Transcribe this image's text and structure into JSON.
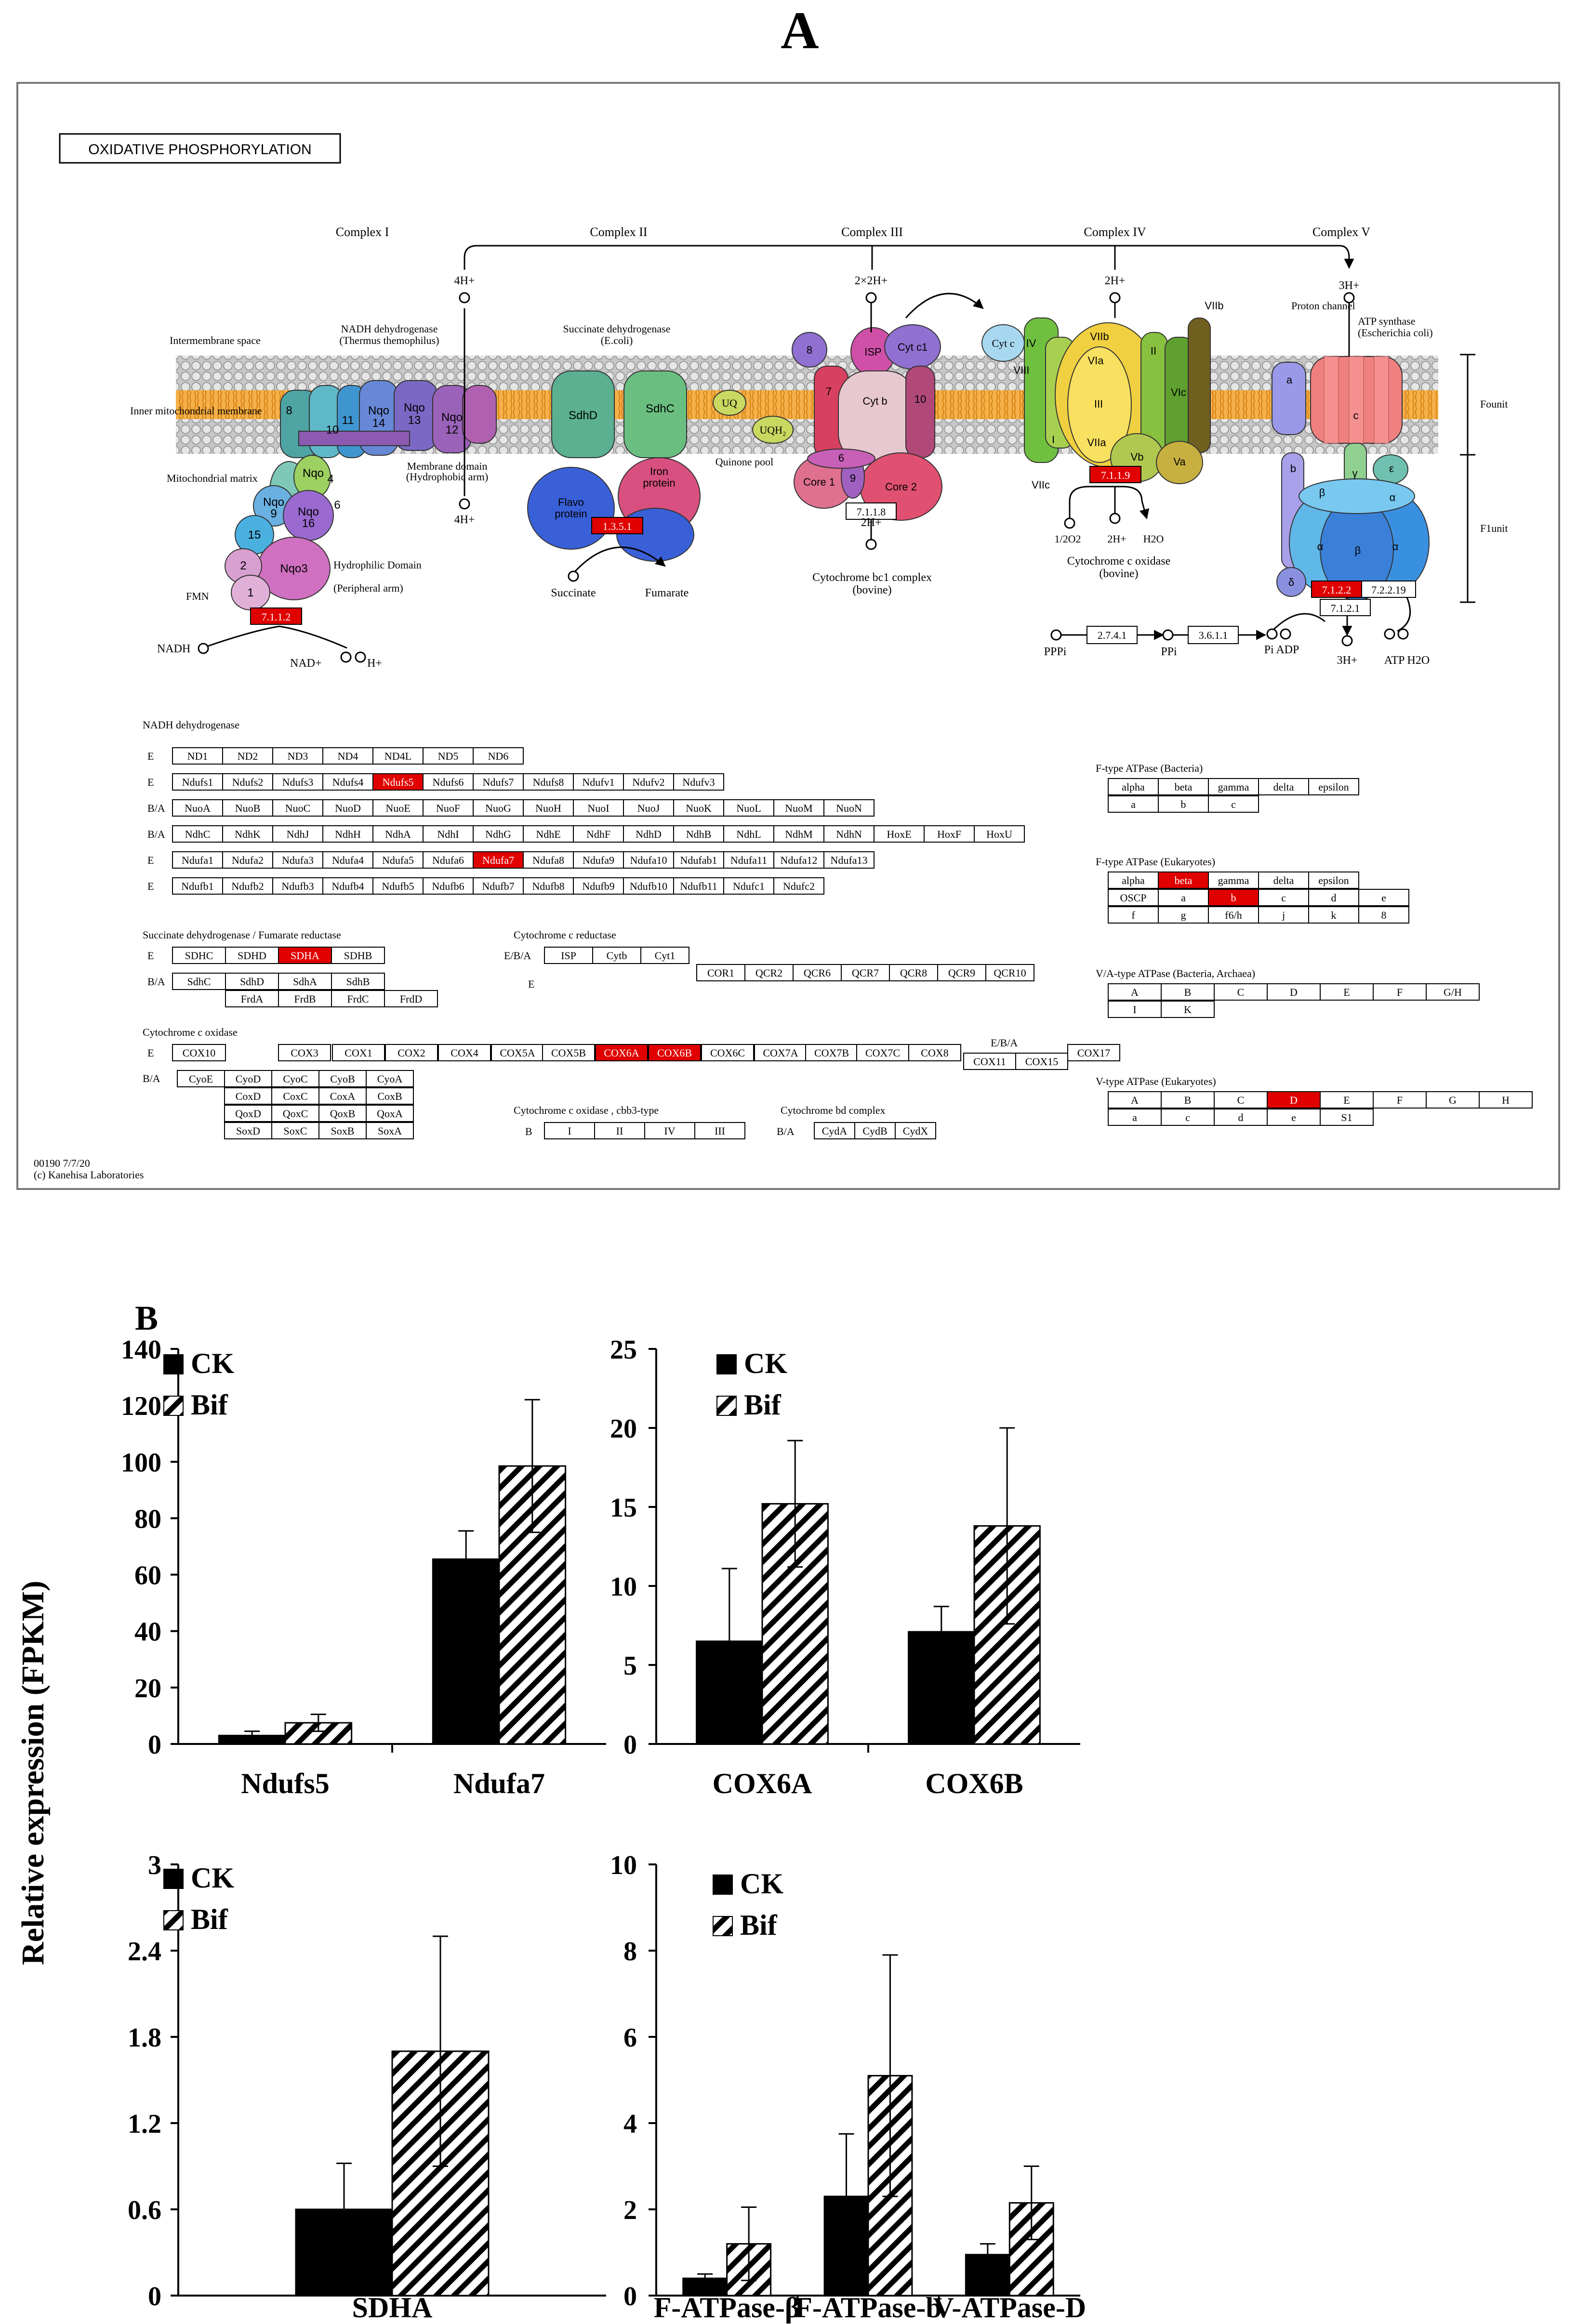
{
  "figure": {
    "panel_a_label": "A",
    "panel_b_label": "B",
    "y_axis_label": "Relative expression (FPKM)"
  },
  "kegg_map": {
    "title": "OXIDATIVE PHOSPHORYLATION",
    "map_id": "00190 7/7/20",
    "copyright": "(c) Kanehisa Laboratories",
    "complexes": [
      "Complex I",
      "Complex II",
      "Complex III",
      "Complex IV",
      "Complex V"
    ],
    "protons": [
      "4H+",
      "4H+",
      "2×2H+",
      "2H+",
      "3H+",
      "2H+",
      "2H+",
      "3H+"
    ],
    "labels": {
      "intermembrane": "Intermembrane space",
      "inner_membrane": "Inner mitochondrial membrane",
      "matrix": "Mitochondrial matrix",
      "nadh_dh": "NADH dehydrogenase",
      "nadh_dh_sub": "(Thermus themophilus)",
      "membrane_domain": "Membrane domain",
      "membrane_domain_sub": "(Hydrophobic arm)",
      "hydrophilic": "Hydrophilic Domain",
      "hydrophilic_sub": "(Peripheral arm)",
      "fmn": "FMN",
      "nadh": "NADH",
      "nad": "NAD+",
      "h_plus": "H+",
      "succ_dh": "Succinate dehydrogenase",
      "succ_dh_sub": "(E.coli)",
      "succinate": "Succinate",
      "fumarate": "Fumarate",
      "quinone_pool": "Quinone pool",
      "uq": "UQ",
      "uqh2": "UQH₂",
      "cytc": "Cyt c",
      "bc1": "Cytochrome bc1 complex",
      "bc1_sub": "(bovine)",
      "cox": "Cytochrome c oxidase",
      "cox_sub": "(bovine)",
      "half_o2": "1/2O2",
      "h2o": "H2O",
      "proton_channel": "Proton channel",
      "atp_synthase": "ATP synthase",
      "atp_synthase_sub": "(Escherichia coli)",
      "fo_unit": "Founit",
      "f1_unit": "F1unit",
      "pppi": "PPPi",
      "ppi": "PPi",
      "pi_adp": "Pi ADP",
      "atp_h2o": "ATP H2O",
      "three_h": "3H+"
    },
    "subunits": {
      "c1": [
        "Nqo",
        "8",
        "10",
        "11",
        "Nqo 14",
        "Nqo 13",
        "Nqo 12",
        "Nqo 9",
        "Nqo 16",
        "15",
        "Nqo3",
        "2",
        "1",
        "4",
        "6"
      ],
      "c2": [
        "SdhD",
        "SdhC",
        "Flavo protein",
        "Iron protein"
      ],
      "c3": [
        "8",
        "ISP",
        "Cyt c1",
        "7",
        "Cyt b",
        "10",
        "6",
        "Core 1",
        "9",
        "Core 2"
      ],
      "c4": [
        "IV",
        "VIII",
        "VIIb",
        "VIa",
        "II",
        "III",
        "VIc",
        "I",
        "VIIa",
        "Vb",
        "Va",
        "VIIc",
        "VIIb"
      ],
      "c5": [
        "a",
        "c",
        "b",
        "δ",
        "ε",
        "γ",
        "α",
        "β",
        "α"
      ]
    },
    "ec_numbers": [
      {
        "label": "7.1.1.2",
        "highlight": true
      },
      {
        "label": "1.3.5.1",
        "highlight": true
      },
      {
        "label": "7.1.1.8",
        "highlight": false
      },
      {
        "label": "7.1.1.9",
        "highlight": true
      },
      {
        "label": "7.1.2.2",
        "highlight": true
      },
      {
        "label": "7.2.2.19",
        "highlight": false
      },
      {
        "label": "7.1.2.1",
        "highlight": false
      },
      {
        "label": "2.7.4.1",
        "highlight": false
      },
      {
        "label": "3.6.1.1",
        "highlight": false
      }
    ],
    "nadh_table": {
      "title": "NADH dehydrogenase",
      "rows": [
        {
          "prefix": "E",
          "cells": [
            {
              "t": "ND1"
            },
            {
              "t": "ND2"
            },
            {
              "t": "ND3"
            },
            {
              "t": "ND4"
            },
            {
              "t": "ND4L"
            },
            {
              "t": "ND5"
            },
            {
              "t": "ND6"
            }
          ]
        },
        {
          "prefix": "E",
          "cells": [
            {
              "t": "Ndufs1"
            },
            {
              "t": "Ndufs2"
            },
            {
              "t": "Ndufs3"
            },
            {
              "t": "Ndufs4"
            },
            {
              "t": "Ndufs5",
              "h": true
            },
            {
              "t": "Ndufs6"
            },
            {
              "t": "Ndufs7"
            },
            {
              "t": "Ndufs8"
            },
            {
              "t": "Ndufv1"
            },
            {
              "t": "Ndufv2"
            },
            {
              "t": "Ndufv3"
            }
          ]
        },
        {
          "prefix": "B/A",
          "cells": [
            {
              "t": "NuoA"
            },
            {
              "t": "NuoB"
            },
            {
              "t": "NuoC"
            },
            {
              "t": "NuoD"
            },
            {
              "t": "NuoE"
            },
            {
              "t": "NuoF"
            },
            {
              "t": "NuoG"
            },
            {
              "t": "NuoH"
            },
            {
              "t": "NuoI"
            },
            {
              "t": "NuoJ"
            },
            {
              "t": "NuoK"
            },
            {
              "t": "NuoL"
            },
            {
              "t": "NuoM"
            },
            {
              "t": "NuoN"
            }
          ]
        },
        {
          "prefix": "B/A",
          "cells": [
            {
              "t": "NdhC"
            },
            {
              "t": "NdhK"
            },
            {
              "t": "NdhJ"
            },
            {
              "t": "NdhH"
            },
            {
              "t": "NdhA"
            },
            {
              "t": "NdhI"
            },
            {
              "t": "NdhG"
            },
            {
              "t": "NdhE"
            },
            {
              "t": "NdhF"
            },
            {
              "t": "NdhD"
            },
            {
              "t": "NdhB"
            },
            {
              "t": "NdhL"
            },
            {
              "t": "NdhM"
            },
            {
              "t": "NdhN"
            },
            {
              "t": "HoxE"
            },
            {
              "t": "HoxF"
            },
            {
              "t": "HoxU"
            }
          ]
        },
        {
          "prefix": "E",
          "cells": [
            {
              "t": "Ndufa1"
            },
            {
              "t": "Ndufa2"
            },
            {
              "t": "Ndufa3"
            },
            {
              "t": "Ndufa4"
            },
            {
              "t": "Ndufa5"
            },
            {
              "t": "Ndufa6"
            },
            {
              "t": "Ndufa7",
              "h": true
            },
            {
              "t": "Ndufa8"
            },
            {
              "t": "Ndufa9"
            },
            {
              "t": "Ndufa10"
            },
            {
              "t": "Ndufab1"
            },
            {
              "t": "Ndufa11"
            },
            {
              "t": "Ndufa12"
            },
            {
              "t": "Ndufa13"
            }
          ]
        },
        {
          "prefix": "E",
          "cells": [
            {
              "t": "Ndufb1"
            },
            {
              "t": "Ndufb2"
            },
            {
              "t": "Ndufb3"
            },
            {
              "t": "Ndufb4"
            },
            {
              "t": "Ndufb5"
            },
            {
              "t": "Ndufb6"
            },
            {
              "t": "Ndufb7"
            },
            {
              "t": "Ndufb8"
            },
            {
              "t": "Ndufb9"
            },
            {
              "t": "Ndufb10"
            },
            {
              "t": "Ndufb11"
            },
            {
              "t": "Ndufc1"
            },
            {
              "t": "Ndufc2"
            }
          ]
        }
      ]
    },
    "sdh_table": {
      "title": "Succinate dehydrogenase / Fumarate reductase",
      "rows": [
        {
          "prefix": "E",
          "cells": [
            {
              "t": "SDHC"
            },
            {
              "t": "SDHD"
            },
            {
              "t": "SDHA",
              "h": true
            },
            {
              "t": "SDHB"
            }
          ]
        },
        {
          "prefix": "B/A",
          "cells": [
            {
              "t": "SdhC"
            },
            {
              "t": "SdhD"
            },
            {
              "t": "SdhA"
            },
            {
              "t": "SdhB"
            }
          ]
        },
        {
          "prefix": "",
          "cells": [
            {
              "t": "FrdA"
            },
            {
              "t": "FrdB"
            },
            {
              "t": "FrdC"
            },
            {
              "t": "FrdD"
            }
          ]
        }
      ]
    },
    "cyt_reductase": {
      "title": "Cytochrome c reductase",
      "row1_prefix": "E/B/A",
      "row1": [
        "ISP",
        "Cytb",
        "Cyt1"
      ],
      "row2_prefix": "E",
      "row2": [
        "COR1",
        "QCR2",
        "QCR6",
        "QCR7",
        "QCR8",
        "QCR9",
        "QCR10"
      ]
    },
    "cox_table": {
      "title": "Cytochrome c oxidase",
      "prefix_e": "E",
      "row_e": [
        {
          "t": "COX10"
        },
        {
          "t": "COX3"
        },
        {
          "t": "COX1"
        },
        {
          "t": "COX2"
        },
        {
          "t": "COX4"
        },
        {
          "t": "COX5A"
        },
        {
          "t": "COX5B"
        },
        {
          "t": "COX6A",
          "h": true
        },
        {
          "t": "COX6B",
          "h": true
        },
        {
          "t": "COX6C"
        },
        {
          "t": "COX7A"
        },
        {
          "t": "COX7B"
        },
        {
          "t": "COX7C"
        },
        {
          "t": "COX8"
        }
      ],
      "ebsa_label": "E/B/A",
      "ebsa": [
        "COX11",
        "COX15"
      ],
      "cox17": "COX17",
      "prefix_ba": "B/A",
      "grid": [
        [
          "CyoE",
          "CyoD",
          "CyoC",
          "CyoB",
          "CyoA"
        ],
        [
          "",
          "CoxD",
          "CoxC",
          "CoxA",
          "CoxB"
        ],
        [
          "",
          "QoxD",
          "QoxC",
          "QoxB",
          "QoxA"
        ],
        [
          "",
          "SoxD",
          "SoxC",
          "SoxB",
          "SoxA"
        ]
      ]
    },
    "cbb3": {
      "title": "Cytochrome c oxidase , cbb3-type",
      "prefix": "B",
      "cells": [
        "I",
        "II",
        "IV",
        "III"
      ]
    },
    "bd": {
      "title": "Cytochrome bd complex",
      "prefix": "B/A",
      "cells": [
        "CydA",
        "CydB",
        "CydX"
      ]
    },
    "f_bact": {
      "title": "F-type ATPase (Bacteria)",
      "row1": [
        {
          "t": "alpha"
        },
        {
          "t": "beta"
        },
        {
          "t": "gamma"
        },
        {
          "t": "delta"
        },
        {
          "t": "epsilon"
        }
      ],
      "row2": [
        {
          "t": "a"
        },
        {
          "t": "b"
        },
        {
          "t": "c"
        }
      ]
    },
    "f_euk": {
      "title": "F-type ATPase (Eukaryotes)",
      "row1": [
        {
          "t": "alpha"
        },
        {
          "t": "beta",
          "h": true
        },
        {
          "t": "gamma"
        },
        {
          "t": "delta"
        },
        {
          "t": "epsilon"
        }
      ],
      "row2": [
        {
          "t": "OSCP"
        },
        {
          "t": "a"
        },
        {
          "t": "b",
          "h": true
        },
        {
          "t": "c"
        },
        {
          "t": "d"
        },
        {
          "t": "e"
        }
      ],
      "row3": [
        {
          "t": "f"
        },
        {
          "t": "g"
        },
        {
          "t": "f6/h"
        },
        {
          "t": "j"
        },
        {
          "t": "k"
        },
        {
          "t": "8"
        }
      ]
    },
    "va_type": {
      "title": "V/A-type ATPase (Bacteria, Archaea)",
      "row1": [
        {
          "t": "A"
        },
        {
          "t": "B"
        },
        {
          "t": "C"
        },
        {
          "t": "D"
        },
        {
          "t": "E"
        },
        {
          "t": "F"
        },
        {
          "t": "G/H"
        }
      ],
      "row2": [
        {
          "t": "I"
        },
        {
          "t": "K"
        }
      ]
    },
    "v_type": {
      "title": "V-type ATPase (Eukaryotes)",
      "row1": [
        {
          "t": "A"
        },
        {
          "t": "B"
        },
        {
          "t": "C"
        },
        {
          "t": "D",
          "h": true
        },
        {
          "t": "E"
        },
        {
          "t": "F"
        },
        {
          "t": "G"
        },
        {
          "t": "H"
        }
      ],
      "row2": [
        {
          "t": "a"
        },
        {
          "t": "c"
        },
        {
          "t": "d"
        },
        {
          "t": "e"
        },
        {
          "t": "S1"
        }
      ]
    }
  },
  "chart_data": [
    {
      "type": "bar",
      "categories": [
        "Ndufs5",
        "Ndufa7"
      ],
      "series": [
        {
          "name": "CK",
          "values": [
            3,
            65.5
          ],
          "errors": [
            1.5,
            10
          ]
        },
        {
          "name": "Bif",
          "values": [
            7.5,
            98.5
          ],
          "errors": [
            3,
            23.5
          ]
        }
      ],
      "ylim": [
        0,
        140
      ],
      "yticks": [
        "0",
        "20",
        "40",
        "60",
        "80",
        "100",
        "120",
        "140"
      ],
      "legend": [
        "CK",
        "Bif"
      ]
    },
    {
      "type": "bar",
      "categories": [
        "COX6A",
        "COX6B"
      ],
      "series": [
        {
          "name": "CK",
          "values": [
            6.5,
            7.1
          ],
          "errors": [
            4.6,
            1.6
          ]
        },
        {
          "name": "Bif",
          "values": [
            15.2,
            13.8
          ],
          "errors": [
            4,
            6.2
          ]
        }
      ],
      "ylim": [
        0,
        25
      ],
      "yticks": [
        "0",
        "5",
        "10",
        "15",
        "20",
        "25"
      ],
      "legend": [
        "CK",
        "Bif"
      ]
    },
    {
      "type": "bar",
      "categories": [
        "SDHA"
      ],
      "series": [
        {
          "name": "CK",
          "values": [
            0.6
          ],
          "errors": [
            0.32
          ]
        },
        {
          "name": "Bif",
          "values": [
            1.7
          ],
          "errors": [
            0.8
          ]
        }
      ],
      "ylim": [
        0,
        3
      ],
      "yticks": [
        "0",
        "0.6",
        "1.2",
        "1.8",
        "2.4",
        "3"
      ],
      "legend": [
        "CK",
        "Bif"
      ]
    },
    {
      "type": "bar",
      "categories": [
        "F-ATPase-β",
        "F-ATPase-b",
        "V-ATPase-D"
      ],
      "series": [
        {
          "name": "CK",
          "values": [
            0.4,
            2.3,
            0.95
          ],
          "errors": [
            0.1,
            1.45,
            0.25
          ]
        },
        {
          "name": "Bif",
          "values": [
            1.2,
            5.1,
            2.15
          ],
          "errors": [
            0.85,
            2.8,
            0.85
          ]
        }
      ],
      "ylim": [
        0,
        10
      ],
      "yticks": [
        "0",
        "2",
        "4",
        "6",
        "8",
        "10"
      ],
      "legend": [
        "CK",
        "Bif"
      ]
    }
  ]
}
